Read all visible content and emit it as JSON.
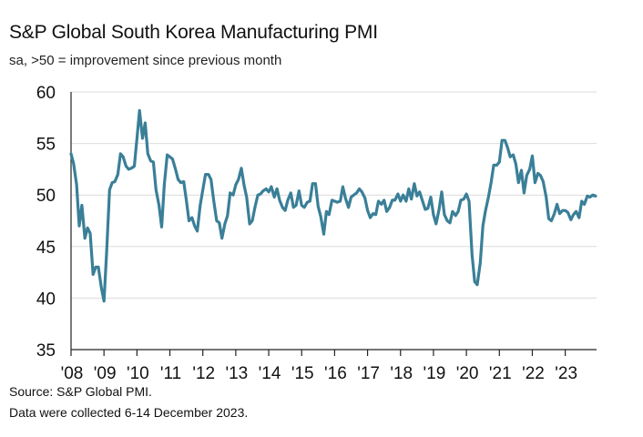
{
  "title": "S&P Global South Korea Manufacturing PMI",
  "subtitle": "sa, >50 = improvement since previous month",
  "footer": {
    "source": "Source: S&P Global PMI.",
    "note": "Data were collected 6-14 December 2023."
  },
  "colors": {
    "line": "#3a7f98",
    "grid": "#dcdcdc",
    "axis": "#222222"
  },
  "chart_data": {
    "type": "line",
    "title": "S&P Global South Korea Manufacturing PMI",
    "subtitle": "sa, >50 = improvement since previous month",
    "xlabel": "",
    "ylabel": "",
    "ylim": [
      35,
      60
    ],
    "yticks": [
      35,
      40,
      45,
      50,
      55,
      60
    ],
    "xlim": [
      2008.0,
      2023.95
    ],
    "xticks": [
      2008,
      2009,
      2010,
      2011,
      2012,
      2013,
      2014,
      2015,
      2016,
      2017,
      2018,
      2019,
      2020,
      2021,
      2022,
      2023
    ],
    "xtick_labels": [
      "'08",
      "'09",
      "'10",
      "'11",
      "'12",
      "'13",
      "'14",
      "'15",
      "'16",
      "'17",
      "'18",
      "'19",
      "'20",
      "'21",
      "'22",
      "'23"
    ],
    "grid": true,
    "series": [
      {
        "x": [
          2008.0,
          2008.08,
          2008.17,
          2008.25,
          2008.33,
          2008.42,
          2008.5,
          2008.58,
          2008.67,
          2008.75,
          2008.83,
          2008.92,
          2009.0,
          2009.08,
          2009.17,
          2009.25,
          2009.33,
          2009.42,
          2009.5,
          2009.58,
          2009.67,
          2009.75,
          2009.83,
          2009.92,
          2010.0,
          2010.08,
          2010.17,
          2010.25,
          2010.33,
          2010.42,
          2010.5,
          2010.58,
          2010.67,
          2010.75,
          2010.83,
          2010.92,
          2011.0,
          2011.08,
          2011.17,
          2011.25,
          2011.33,
          2011.42,
          2011.5,
          2011.58,
          2011.67,
          2011.75,
          2011.83,
          2011.92,
          2012.0,
          2012.08,
          2012.17,
          2012.25,
          2012.33,
          2012.42,
          2012.5,
          2012.58,
          2012.67,
          2012.75,
          2012.83,
          2012.92,
          2013.0,
          2013.08,
          2013.17,
          2013.25,
          2013.33,
          2013.42,
          2013.5,
          2013.58,
          2013.67,
          2013.75,
          2013.83,
          2013.92,
          2014.0,
          2014.08,
          2014.17,
          2014.25,
          2014.33,
          2014.42,
          2014.5,
          2014.58,
          2014.67,
          2014.75,
          2014.83,
          2014.92,
          2015.0,
          2015.08,
          2015.17,
          2015.25,
          2015.33,
          2015.42,
          2015.5,
          2015.58,
          2015.67,
          2015.75,
          2015.83,
          2015.92,
          2016.0,
          2016.08,
          2016.17,
          2016.25,
          2016.33,
          2016.42,
          2016.5,
          2016.58,
          2016.67,
          2016.75,
          2016.83,
          2016.92,
          2017.0,
          2017.08,
          2017.17,
          2017.25,
          2017.33,
          2017.42,
          2017.5,
          2017.58,
          2017.67,
          2017.75,
          2017.83,
          2017.92,
          2018.0,
          2018.08,
          2018.17,
          2018.25,
          2018.33,
          2018.42,
          2018.5,
          2018.58,
          2018.67,
          2018.75,
          2018.83,
          2018.92,
          2019.0,
          2019.08,
          2019.17,
          2019.25,
          2019.33,
          2019.42,
          2019.5,
          2019.58,
          2019.67,
          2019.75,
          2019.83,
          2019.92,
          2020.0,
          2020.08,
          2020.17,
          2020.25,
          2020.33,
          2020.42,
          2020.5,
          2020.58,
          2020.67,
          2020.75,
          2020.83,
          2020.92,
          2021.0,
          2021.08,
          2021.17,
          2021.25,
          2021.33,
          2021.42,
          2021.5,
          2021.58,
          2021.67,
          2021.75,
          2021.83,
          2021.92,
          2022.0,
          2022.08,
          2022.17,
          2022.25,
          2022.33,
          2022.42,
          2022.5,
          2022.58,
          2022.67,
          2022.75,
          2022.83,
          2022.92,
          2023.0,
          2023.08,
          2023.17,
          2023.25,
          2023.33,
          2023.42,
          2023.5,
          2023.58,
          2023.67,
          2023.75,
          2023.83,
          2023.92
        ],
        "values": [
          54.0,
          53.0,
          51.0,
          47.0,
          49.0,
          45.8,
          46.8,
          46.3,
          42.3,
          43.0,
          43.0,
          41.0,
          39.7,
          44.5,
          50.5,
          51.2,
          51.3,
          52.0,
          54.0,
          53.7,
          52.8,
          52.5,
          52.6,
          52.8,
          55.5,
          58.2,
          55.5,
          57.0,
          54.0,
          53.3,
          53.2,
          50.5,
          49.0,
          46.9,
          51.0,
          53.9,
          53.7,
          53.5,
          52.5,
          51.5,
          51.2,
          51.3,
          49.5,
          47.5,
          47.8,
          47.0,
          46.5,
          49.0,
          50.5,
          52.0,
          52.0,
          51.5,
          49.5,
          47.5,
          47.3,
          45.8,
          47.2,
          48.0,
          50.2,
          50.0,
          51.0,
          51.5,
          52.6,
          51.0,
          49.8,
          47.2,
          47.5,
          48.8,
          50.0,
          50.1,
          50.4,
          50.6,
          50.3,
          50.8,
          49.8,
          50.6,
          49.5,
          48.8,
          48.5,
          49.5,
          50.2,
          48.8,
          49.0,
          50.4,
          49.0,
          48.8,
          49.3,
          49.4,
          51.1,
          51.1,
          48.9,
          47.9,
          46.2,
          48.4,
          48.1,
          49.5,
          49.4,
          49.3,
          49.4,
          50.8,
          49.7,
          48.8,
          49.8,
          50.0,
          50.2,
          50.6,
          50.3,
          49.7,
          48.5,
          47.8,
          48.2,
          48.1,
          49.4,
          49.1,
          49.5,
          48.4,
          48.8,
          49.5,
          49.5,
          50.1,
          49.4,
          50.0,
          49.4,
          50.6,
          49.6,
          51.1,
          49.9,
          50.3,
          49.4,
          48.6,
          48.7,
          49.8,
          48.1,
          47.2,
          48.6,
          50.3,
          48.1,
          47.5,
          47.3,
          48.4,
          48.0,
          48.4,
          49.5,
          49.6,
          50.1,
          49.4,
          44.2,
          41.6,
          41.3,
          43.4,
          47.0,
          48.5,
          49.8,
          51.2,
          52.9,
          52.9,
          53.2,
          55.3,
          55.3,
          54.6,
          53.7,
          53.9,
          53.0,
          51.2,
          52.4,
          50.2,
          51.9,
          52.5,
          53.8,
          51.2,
          52.1,
          51.9,
          51.3,
          49.8,
          47.7,
          47.5,
          48.2,
          49.1,
          48.2,
          48.5,
          48.5,
          48.3,
          47.6,
          48.1,
          48.4,
          47.8,
          49.4,
          49.1,
          49.9,
          49.8,
          50.0,
          49.9
        ]
      }
    ]
  }
}
